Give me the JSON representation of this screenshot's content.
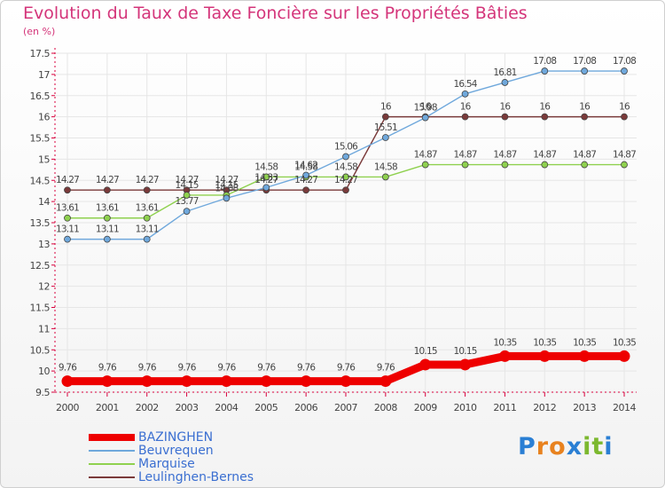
{
  "header": {
    "title": "Evolution du Taux de Taxe Foncière sur les Propriétés Bâties",
    "unit": "(en %)"
  },
  "logo": {
    "letters": [
      "P",
      "r",
      "o",
      "x",
      "i",
      "t",
      "i"
    ],
    "colors": [
      "#2a7fd4",
      "#e8821f",
      "#e8821f",
      "#2a7fd4",
      "#7cb82f",
      "#7cb82f",
      "#2a7fd4"
    ]
  },
  "colors": {
    "axis": "#d8003c",
    "grid": "#e6e6e6",
    "label": "#444444"
  },
  "chart_data": {
    "type": "line",
    "title": "Evolution du Taux de Taxe Foncière sur les Propriétés Bâties",
    "xlabel": "",
    "ylabel": "(en %)",
    "x": [
      2000,
      2001,
      2002,
      2003,
      2004,
      2005,
      2006,
      2007,
      2008,
      2009,
      2010,
      2011,
      2012,
      2013,
      2014
    ],
    "ylim": [
      9.5,
      17.5
    ],
    "yticks": [
      9.5,
      10,
      10.5,
      11,
      11.5,
      12,
      12.5,
      13,
      13.5,
      14,
      14.5,
      15,
      15.5,
      16,
      16.5,
      17,
      17.5
    ],
    "grid": true,
    "legend": "bottom-left",
    "series": [
      {
        "name": "BAZINGHEN",
        "color": "#ee0000",
        "values": [
          9.76,
          9.76,
          9.76,
          9.76,
          9.76,
          9.76,
          9.76,
          9.76,
          9.76,
          10.15,
          10.15,
          10.35,
          10.35,
          10.35,
          10.35
        ],
        "labels": [
          "9.76",
          "9.76",
          "9.76",
          "9.76",
          "9.76",
          "9.76",
          "9.76",
          "9.76",
          "9.76",
          "10.15",
          "10.15",
          "10.35",
          "10.35",
          "10.35",
          "10.35"
        ]
      },
      {
        "name": "Beuvrequen",
        "color": "#6fa8dc",
        "values": [
          13.11,
          13.11,
          13.11,
          13.77,
          14.08,
          14.33,
          14.62,
          15.06,
          15.51,
          15.98,
          16.54,
          16.81,
          17.08,
          17.08,
          17.08
        ],
        "labels": [
          "13.11",
          "13.11",
          "13.11",
          "13.77",
          "14.08",
          "14.33",
          "14.62",
          "15.06",
          "15.51",
          "15.98",
          "16.54",
          "16.81",
          "17.08",
          "17.08",
          "17.08"
        ]
      },
      {
        "name": "Marquise",
        "color": "#8fd14f",
        "values": [
          13.61,
          13.61,
          13.61,
          14.15,
          14.15,
          14.58,
          14.58,
          14.58,
          14.58,
          14.87,
          14.87,
          14.87,
          14.87,
          14.87,
          14.87
        ],
        "labels": [
          "13.61",
          "13.61",
          "13.61",
          "14.15",
          "14.15",
          "14.58",
          "14.58",
          "14.58",
          "14.58",
          "14.87",
          "14.87",
          "14.87",
          "14.87",
          "14.87",
          "14.87"
        ]
      },
      {
        "name": "Leulinghen-Bernes",
        "color": "#7a3a3a",
        "values": [
          14.27,
          14.27,
          14.27,
          14.27,
          14.27,
          14.27,
          14.27,
          14.27,
          16,
          16,
          16,
          16,
          16,
          16,
          16
        ],
        "labels": [
          "14.27",
          "14.27",
          "14.27",
          "14.27",
          "14.27",
          "14.27",
          "14.27",
          "14.27",
          "16",
          "16",
          "16",
          "16",
          "16",
          "16",
          "16"
        ]
      }
    ]
  }
}
